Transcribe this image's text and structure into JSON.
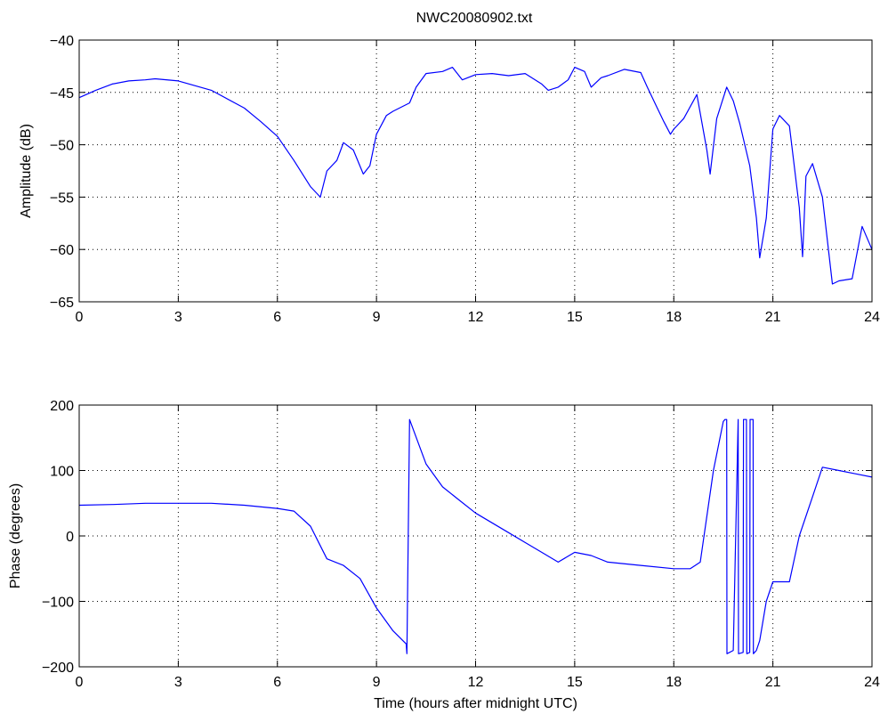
{
  "figure_title": "NWC20080902.txt",
  "chart_data": [
    {
      "type": "line",
      "title": "NWC20080902.txt",
      "xlabel": "",
      "ylabel": "Amplitude (dB)",
      "xlim": [
        0,
        24
      ],
      "ylim": [
        -65,
        -40
      ],
      "xticks": [
        0,
        3,
        6,
        9,
        12,
        15,
        18,
        21,
        24
      ],
      "xtick_labels": [
        "0",
        "3",
        "6",
        "9",
        "12",
        "15",
        "18",
        "21",
        "24"
      ],
      "yticks": [
        -65,
        -60,
        -55,
        -50,
        -45,
        -40
      ],
      "ytick_labels": [
        "−65",
        "−60",
        "−55",
        "−50",
        "−45",
        "−40"
      ],
      "grid": true,
      "color": "#0000ff",
      "series": [
        {
          "x": [
            0,
            0.5,
            1,
            1.5,
            2,
            2.3,
            3,
            4,
            5,
            5.5,
            6,
            6.5,
            7,
            7.3,
            7.5,
            7.8,
            8,
            8.3,
            8.6,
            8.8,
            9,
            9.3,
            9.5,
            10,
            10.2,
            10.5,
            11,
            11.3,
            11.6,
            12,
            12.5,
            13,
            13.5,
            14,
            14.2,
            14.5,
            14.8,
            15,
            15.3,
            15.5,
            15.8,
            16,
            16.5,
            17,
            17.2,
            17.5,
            17.7,
            17.9,
            18,
            18.3,
            18.7,
            19,
            19.1,
            19.3,
            19.6,
            19.8,
            20,
            20.3,
            20.5,
            20.6,
            20.8,
            21,
            21.2,
            21.5,
            21.8,
            21.9,
            22,
            22.2,
            22.5,
            22.8,
            23,
            23.4,
            23.7,
            24
          ],
          "y": [
            -45.5,
            -44.8,
            -44.2,
            -43.9,
            -43.8,
            -43.7,
            -43.9,
            -44.8,
            -46.5,
            -47.8,
            -49.2,
            -51.5,
            -54,
            -55,
            -52.5,
            -51.5,
            -49.8,
            -50.5,
            -52.8,
            -52,
            -49,
            -47.2,
            -46.8,
            -46,
            -44.5,
            -43.2,
            -43,
            -42.6,
            -43.8,
            -43.3,
            -43.2,
            -43.4,
            -43.2,
            -44.2,
            -44.8,
            -44.5,
            -43.8,
            -42.6,
            -43,
            -44.5,
            -43.6,
            -43.4,
            -42.8,
            -43.1,
            -44.5,
            -46.5,
            -47.8,
            -49,
            -48.5,
            -47.5,
            -45.2,
            -50.5,
            -52.8,
            -47.5,
            -44.5,
            -45.8,
            -48,
            -52,
            -57,
            -60.8,
            -57,
            -48.5,
            -47.2,
            -48.2,
            -56,
            -60.7,
            -53,
            -51.8,
            -55,
            -63.3,
            -63,
            -62.8,
            -57.8,
            -60
          ]
        }
      ]
    },
    {
      "type": "line",
      "title": "",
      "xlabel": "Time (hours after midnight UTC)",
      "ylabel": "Phase (degrees)",
      "xlim": [
        0,
        24
      ],
      "ylim": [
        -200,
        200
      ],
      "xticks": [
        0,
        3,
        6,
        9,
        12,
        15,
        18,
        21,
        24
      ],
      "xtick_labels": [
        "0",
        "3",
        "6",
        "9",
        "12",
        "15",
        "18",
        "21",
        "24"
      ],
      "yticks": [
        -200,
        -100,
        0,
        100,
        200
      ],
      "ytick_labels": [
        "−200",
        "−100",
        "0",
        "100",
        "200"
      ],
      "grid": true,
      "color": "#0000ff",
      "series": [
        {
          "x": [
            0,
            1,
            2,
            3,
            4,
            5,
            6,
            6.5,
            7,
            7.2,
            7.5,
            8,
            8.5,
            9,
            9.5,
            9.9,
            9.92,
            10,
            10.5,
            11,
            11.5,
            12,
            13,
            13.5,
            14,
            14.5,
            15,
            15.5,
            16,
            17,
            18,
            18.5,
            18.8,
            19.2,
            19.5,
            19.55,
            19.6,
            19.61,
            19.8,
            19.95,
            19.96,
            20.1,
            20.11,
            20.2,
            20.21,
            20.3,
            20.31,
            20.4,
            20.41,
            20.5,
            20.6,
            20.8,
            21,
            21.3,
            21.5,
            21.8,
            22.2,
            22.5,
            23,
            23.5,
            24
          ],
          "y": [
            47,
            48,
            50,
            50,
            50,
            47,
            42,
            38,
            15,
            -5,
            -35,
            -45,
            -65,
            -110,
            -145,
            -165,
            -180,
            178,
            110,
            75,
            55,
            35,
            5,
            -10,
            -25,
            -40,
            -25,
            -30,
            -40,
            -45,
            -50,
            -50,
            -40,
            100,
            175,
            178,
            178,
            -180,
            -175,
            178,
            -180,
            -178,
            178,
            178,
            -180,
            -178,
            178,
            178,
            -180,
            -175,
            -160,
            -100,
            -70,
            -70,
            -70,
            0,
            60,
            105,
            100,
            95,
            90
          ]
        }
      ]
    }
  ]
}
